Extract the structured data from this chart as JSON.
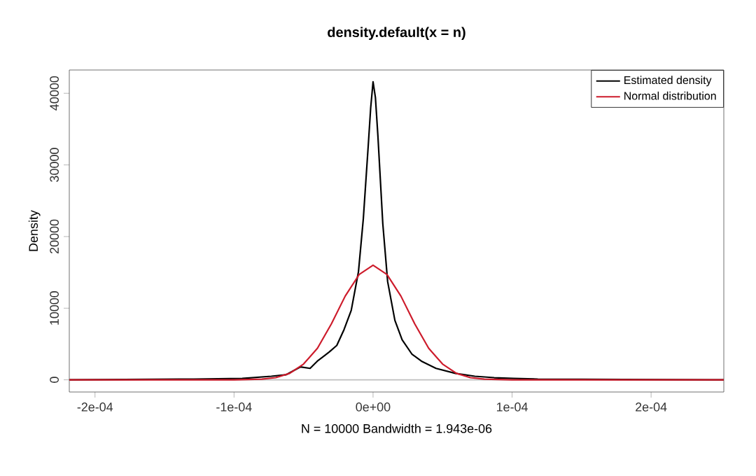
{
  "chart_data": {
    "type": "line",
    "title": "density.default(x = n)",
    "xlabel": "N = 10000   Bandwidth = 1.943e-06",
    "ylabel": "Density",
    "xlim": [
      -0.0002185,
      0.0002523
    ],
    "ylim": [
      -1700,
      43250
    ],
    "xticks": [
      {
        "value": -0.0002,
        "label": "-2e-04"
      },
      {
        "value": -0.0001,
        "label": "-1e-04"
      },
      {
        "value": 0,
        "label": "0e+00"
      },
      {
        "value": 0.0001,
        "label": "1e-04"
      },
      {
        "value": 0.0002,
        "label": "2e-04"
      }
    ],
    "yticks": [
      0,
      10000,
      20000,
      30000,
      40000
    ],
    "legend": "top right",
    "marker": "none",
    "line_style": "solid",
    "grid": false,
    "ref_lines": [
      {
        "axis": "y",
        "value": 0,
        "color": "#bebebe"
      }
    ],
    "series": [
      {
        "name": "Estimated density",
        "color": "#000000",
        "x": [
          -0.0002185,
          -0.0001289,
          -9.41e-05,
          -7.32e-05,
          -6.27e-05,
          -5.23e-05,
          -4.53e-05,
          -4.01e-05,
          -3.14e-05,
          -2.61e-05,
          -2.09e-05,
          -1.57e-05,
          -1.05e-05,
          -7e-06,
          -3.5e-06,
          -1.7e-06,
          0,
          1.7e-06,
          3.5e-06,
          7e-06,
          1.05e-05,
          1.57e-05,
          2.09e-05,
          2.79e-05,
          3.48e-05,
          4.53e-05,
          5.92e-05,
          7.32e-05,
          8.71e-05,
          0.000101,
          0.0001185,
          0.0002523
        ],
        "values": [
          0,
          100,
          200,
          500,
          700,
          1800,
          1600,
          2600,
          3900,
          4800,
          7000,
          9700,
          15100,
          22500,
          32600,
          38000,
          41600,
          39400,
          34000,
          21800,
          13700,
          8300,
          5600,
          3600,
          2600,
          1600,
          900,
          500,
          300,
          200,
          100,
          0
        ]
      },
      {
        "name": "Normal distribution",
        "color": "#cd1b2b",
        "x": [
          -0.0002185,
          -0.00012,
          -0.0001,
          -8e-05,
          -7e-05,
          -6e-05,
          -5e-05,
          -4e-05,
          -3e-05,
          -2e-05,
          -1e-05,
          0,
          1e-05,
          2e-05,
          3e-05,
          4e-05,
          5e-05,
          6e-05,
          7e-05,
          8e-05,
          0.0001,
          0.00012,
          0.0002523
        ],
        "values": [
          0,
          0,
          0,
          100,
          300,
          900,
          2200,
          4400,
          7800,
          11700,
          14700,
          16000,
          14700,
          11700,
          7800,
          4400,
          2200,
          900,
          300,
          100,
          0,
          0,
          0
        ]
      }
    ]
  }
}
